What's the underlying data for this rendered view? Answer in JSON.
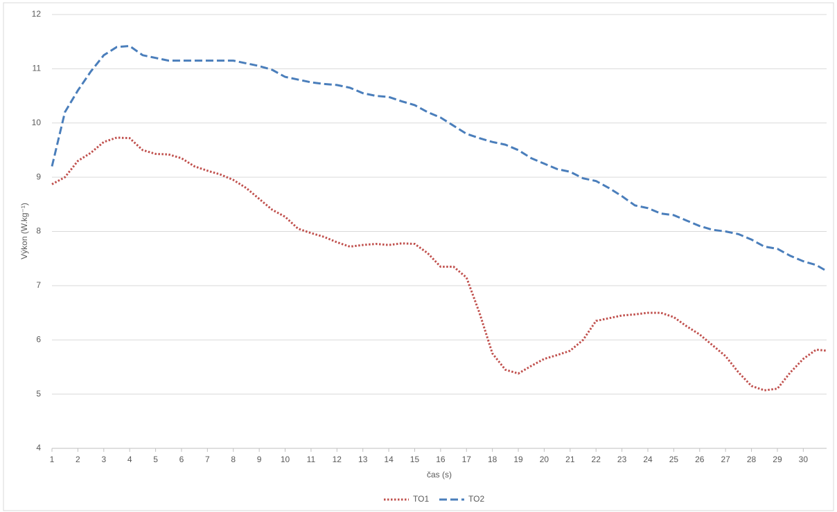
{
  "chart_data": {
    "type": "line",
    "x_label": "čas (s)",
    "y_label": "Výkon (W.kg⁻¹)",
    "x": [
      1,
      1.5,
      2,
      2.5,
      3,
      3.5,
      4,
      4.5,
      5,
      5.5,
      6,
      6.5,
      7,
      7.5,
      8,
      8.5,
      9,
      9.5,
      10,
      10.5,
      11,
      11.5,
      12,
      12.5,
      13,
      13.5,
      14,
      14.5,
      15,
      15.5,
      16,
      16.5,
      17,
      17.5,
      18,
      18.5,
      19,
      19.5,
      20,
      20.5,
      21,
      21.5,
      22,
      22.5,
      23,
      23.5,
      24,
      24.5,
      25,
      25.5,
      26,
      26.5,
      27,
      27.5,
      28,
      28.5,
      29,
      29.5,
      30,
      30.5,
      30.9
    ],
    "series": [
      {
        "name": "TO1",
        "color": "#c0504d",
        "style": "dotted",
        "values": [
          8.87,
          9.0,
          9.3,
          9.45,
          9.65,
          9.73,
          9.72,
          9.5,
          9.43,
          9.42,
          9.35,
          9.2,
          9.12,
          9.05,
          8.95,
          8.8,
          8.6,
          8.4,
          8.27,
          8.05,
          7.97,
          7.9,
          7.8,
          7.72,
          7.75,
          7.77,
          7.75,
          7.78,
          7.77,
          7.6,
          7.35,
          7.35,
          7.15,
          6.5,
          5.75,
          5.45,
          5.38,
          5.52,
          5.65,
          5.72,
          5.8,
          6.0,
          6.35,
          6.4,
          6.45,
          6.47,
          6.5,
          6.5,
          6.42,
          6.25,
          6.1,
          5.9,
          5.7,
          5.4,
          5.15,
          5.07,
          5.1,
          5.4,
          5.65,
          5.82,
          5.8
        ]
      },
      {
        "name": "TO2",
        "color": "#4a7ebb",
        "style": "dashed",
        "values": [
          9.2,
          10.2,
          10.6,
          10.95,
          11.25,
          11.4,
          11.42,
          11.25,
          11.2,
          11.15,
          11.15,
          11.15,
          11.15,
          11.15,
          11.15,
          11.1,
          11.05,
          10.98,
          10.85,
          10.8,
          10.75,
          10.72,
          10.7,
          10.65,
          10.55,
          10.5,
          10.48,
          10.4,
          10.33,
          10.2,
          10.1,
          9.95,
          9.8,
          9.72,
          9.65,
          9.6,
          9.5,
          9.35,
          9.25,
          9.15,
          9.1,
          8.98,
          8.93,
          8.8,
          8.65,
          8.48,
          8.43,
          8.33,
          8.3,
          8.2,
          8.1,
          8.03,
          8.0,
          7.95,
          7.85,
          7.72,
          7.68,
          7.55,
          7.45,
          7.38,
          7.27
        ]
      }
    ],
    "xlim": [
      1,
      30.9
    ],
    "xticks": [
      1,
      2,
      3,
      4,
      5,
      6,
      7,
      8,
      9,
      10,
      11,
      12,
      13,
      14,
      15,
      16,
      17,
      18,
      19,
      20,
      21,
      22,
      23,
      24,
      25,
      26,
      27,
      28,
      29,
      30
    ],
    "ylim": [
      4,
      12
    ],
    "yticks": [
      4,
      5,
      6,
      7,
      8,
      9,
      10,
      11,
      12
    ],
    "grid": true,
    "legend": "bottom"
  }
}
